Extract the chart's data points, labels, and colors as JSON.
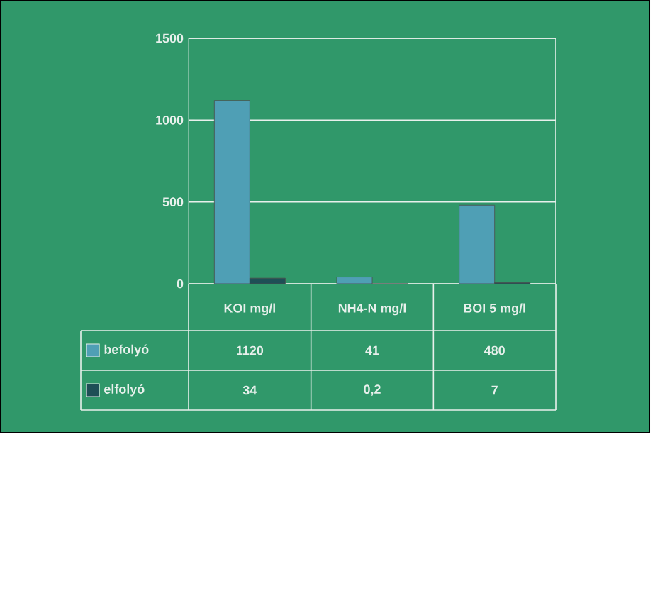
{
  "chart_data": {
    "type": "bar",
    "categories": [
      "KOI mg/l",
      "NH4-N mg/l",
      "BOI 5  mg/l"
    ],
    "series": [
      {
        "name": "befolyó",
        "color": "#4f9fb5",
        "values": [
          1120,
          41,
          480
        ],
        "value_labels": [
          "1120",
          "41",
          "480"
        ]
      },
      {
        "name": "elfolyó",
        "color": "#1e4f56",
        "values": [
          34,
          0.2,
          7
        ],
        "value_labels": [
          "34",
          "0,2",
          "7"
        ]
      }
    ],
    "ylim": [
      0,
      1500
    ],
    "yticks": [
      0,
      500,
      1000,
      1500
    ],
    "grid": "y",
    "legend": "bottom"
  }
}
